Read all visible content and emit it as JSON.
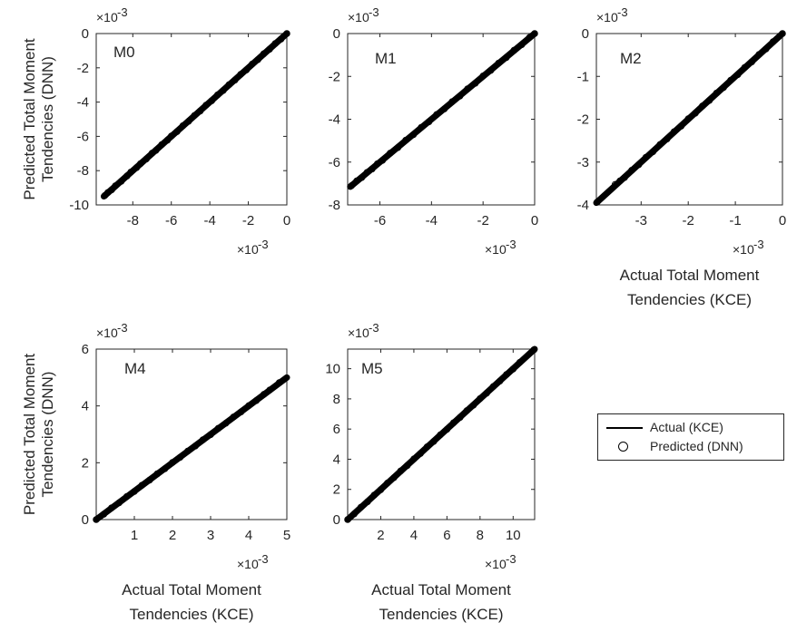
{
  "chart_data": [
    {
      "type": "scatter",
      "annotation": "M0",
      "x_multiplier": "×10-3",
      "y_multiplier": "×10-3",
      "xlim": [
        -9.9,
        0
      ],
      "ylim": [
        -10,
        0
      ],
      "xticks": [
        -8,
        -6,
        -4,
        -2,
        0
      ],
      "yticks": [
        -10,
        -8,
        -6,
        -4,
        -2,
        0
      ],
      "xlabel": [],
      "ylabel": [
        "Predicted Total Moment",
        "Tendencies (DNN)"
      ],
      "series": [
        {
          "name": "Actual (KCE)",
          "kind": "line",
          "x": [
            -9.5,
            0
          ],
          "y": [
            -9.5,
            0
          ]
        },
        {
          "name": "Predicted (DNN)",
          "kind": "markers",
          "x": [
            -9.45,
            -9.3,
            -9.1,
            -8.9,
            -8.6,
            -8.3,
            -8.1,
            -7.8,
            -7.6,
            -7.3,
            -7.0,
            -6.8,
            -6.5,
            -6.2,
            -6.0,
            -5.7,
            -5.4,
            -5.1,
            -4.8,
            -4.5,
            -4.2,
            -3.9,
            -3.6,
            -3.3,
            -3.0,
            -2.7,
            -2.4,
            -2.1,
            -1.8,
            -1.5,
            -1.2,
            -0.9,
            -0.6,
            -0.3,
            0
          ],
          "y": [
            -9.45,
            -9.28,
            -9.12,
            -8.88,
            -8.62,
            -8.31,
            -8.08,
            -7.82,
            -7.59,
            -7.32,
            -6.98,
            -6.82,
            -6.48,
            -6.22,
            -5.98,
            -5.72,
            -5.38,
            -5.12,
            -4.78,
            -4.52,
            -4.18,
            -3.92,
            -3.58,
            -3.32,
            -2.98,
            -2.72,
            -2.38,
            -2.12,
            -1.78,
            -1.52,
            -1.18,
            -0.92,
            -0.58,
            -0.32,
            0
          ]
        }
      ]
    },
    {
      "type": "scatter",
      "annotation": "M1",
      "x_multiplier": "×10-3",
      "y_multiplier": "×10-3",
      "xlim": [
        -7.25,
        0
      ],
      "ylim": [
        -8,
        0
      ],
      "xticks": [
        -6,
        -4,
        -2,
        0
      ],
      "yticks": [
        -8,
        -6,
        -4,
        -2,
        0
      ],
      "xlabel": [],
      "ylabel": [],
      "series": [
        {
          "name": "Actual (KCE)",
          "kind": "line",
          "x": [
            -7.15,
            0
          ],
          "y": [
            -7.15,
            0
          ]
        },
        {
          "name": "Predicted (DNN)",
          "kind": "markers",
          "x": [
            -7.1,
            -6.9,
            -6.7,
            -6.5,
            -6.3,
            -6.1,
            -5.9,
            -5.6,
            -5.3,
            -5.0,
            -4.7,
            -4.4,
            -4.1,
            -3.8,
            -3.5,
            -3.2,
            -2.9,
            -2.6,
            -2.3,
            -2.0,
            -1.7,
            -1.4,
            -1.1,
            -0.8,
            -0.5,
            -0.2,
            0
          ],
          "y": [
            -7.1,
            -6.88,
            -6.72,
            -6.48,
            -6.32,
            -6.08,
            -5.92,
            -5.58,
            -5.32,
            -4.98,
            -4.72,
            -4.38,
            -4.12,
            -3.78,
            -3.52,
            -3.18,
            -2.92,
            -2.58,
            -2.32,
            -1.98,
            -1.72,
            -1.38,
            -1.12,
            -0.78,
            -0.52,
            -0.18,
            0
          ]
        }
      ]
    },
    {
      "type": "scatter",
      "annotation": "M2",
      "x_multiplier": "×10-3",
      "y_multiplier": "×10-3",
      "xlim": [
        -3.95,
        0
      ],
      "ylim": [
        -4,
        0
      ],
      "xticks": [
        -3,
        -2,
        -1,
        0
      ],
      "yticks": [
        -4,
        -3,
        -2,
        -1,
        0
      ],
      "xlabel": [
        "Actual Total Moment",
        "Tendencies (KCE)"
      ],
      "ylabel": [],
      "series": [
        {
          "name": "Actual (KCE)",
          "kind": "line",
          "x": [
            -3.95,
            0
          ],
          "y": [
            -3.95,
            0
          ]
        },
        {
          "name": "Predicted (DNN)",
          "kind": "markers",
          "x": [
            -3.93,
            -3.55,
            -3.45,
            -3.35,
            -3.2,
            -3.05,
            -2.9,
            -2.75,
            -2.6,
            -2.45,
            -2.3,
            -2.15,
            -2.0,
            -1.85,
            -1.7,
            -1.55,
            -1.4,
            -1.25,
            -1.1,
            -0.95,
            -0.8,
            -0.65,
            -0.5,
            -0.35,
            -0.2,
            0
          ],
          "y": [
            -3.93,
            -3.52,
            -3.44,
            -3.36,
            -3.19,
            -3.06,
            -2.89,
            -2.76,
            -2.59,
            -2.46,
            -2.29,
            -2.16,
            -1.99,
            -1.86,
            -1.69,
            -1.56,
            -1.39,
            -1.26,
            -1.09,
            -0.96,
            -0.79,
            -0.66,
            -0.49,
            -0.36,
            -0.19,
            0
          ]
        }
      ]
    },
    {
      "type": "scatter",
      "annotation": "M4",
      "x_multiplier": "×10-3",
      "y_multiplier": "×10-3",
      "xlim": [
        0,
        5
      ],
      "ylim": [
        0,
        6
      ],
      "xticks": [
        1,
        2,
        3,
        4,
        5
      ],
      "yticks": [
        0,
        2,
        4,
        6
      ],
      "xlabel": [
        "Actual Total Moment",
        "Tendencies (KCE)"
      ],
      "ylabel": [
        "Predicted Total Moment",
        "Tendencies (DNN)"
      ],
      "series": [
        {
          "name": "Actual (KCE)",
          "kind": "line",
          "x": [
            0,
            5
          ],
          "y": [
            0,
            5
          ]
        },
        {
          "name": "Predicted (DNN)",
          "kind": "markers",
          "x": [
            0,
            0.2,
            0.4,
            0.6,
            0.8,
            1.0,
            1.2,
            1.4,
            1.6,
            1.8,
            2.0,
            2.2,
            2.4,
            2.6,
            2.8,
            3.0,
            3.2,
            3.4,
            3.6,
            3.8,
            4.0,
            4.2,
            4.4,
            4.55,
            4.8
          ],
          "y": [
            0,
            0.19,
            0.41,
            0.59,
            0.81,
            0.99,
            1.21,
            1.39,
            1.61,
            1.79,
            2.01,
            2.19,
            2.41,
            2.59,
            2.81,
            2.99,
            3.21,
            3.39,
            3.61,
            3.79,
            4.01,
            4.19,
            4.41,
            4.56,
            4.82
          ]
        }
      ]
    },
    {
      "type": "scatter",
      "annotation": "M5",
      "x_multiplier": "×10-3",
      "y_multiplier": "×10-3",
      "xlim": [
        0,
        11.3
      ],
      "ylim": [
        0,
        11.3
      ],
      "xticks": [
        2,
        4,
        6,
        8,
        10
      ],
      "yticks": [
        0,
        2,
        4,
        6,
        8,
        10
      ],
      "xlabel": [
        "Actual Total Moment",
        "Tendencies (KCE)"
      ],
      "ylabel": [],
      "series": [
        {
          "name": "Actual (KCE)",
          "kind": "line",
          "x": [
            0,
            11.3
          ],
          "y": [
            0,
            11.3
          ]
        },
        {
          "name": "Predicted (DNN)",
          "kind": "markers",
          "x": [
            0,
            0.4,
            0.8,
            1.2,
            1.6,
            2.0,
            2.4,
            2.8,
            3.2,
            3.6,
            4.0,
            4.4,
            4.8,
            5.2,
            5.6,
            6.0,
            6.4,
            6.8,
            7.2,
            7.6,
            8.0,
            8.4,
            8.8,
            9.2,
            9.6,
            10.0,
            10.4,
            11.25
          ],
          "y": [
            0,
            0.38,
            0.82,
            1.18,
            1.62,
            1.98,
            2.42,
            2.78,
            3.22,
            3.58,
            4.02,
            4.38,
            4.82,
            5.18,
            5.62,
            5.98,
            6.42,
            6.78,
            7.22,
            7.58,
            8.02,
            8.38,
            8.82,
            9.18,
            9.62,
            9.98,
            10.42,
            11.25
          ]
        }
      ]
    }
  ],
  "legend": {
    "entries": [
      {
        "label": "Actual (KCE)",
        "symbol": "line"
      },
      {
        "label": "Predicted (DNN)",
        "symbol": "circle"
      }
    ],
    "placement": "right, beside bottom row"
  },
  "colors": {
    "line": "#000000",
    "marker": "#000000",
    "axis": "#262626"
  }
}
